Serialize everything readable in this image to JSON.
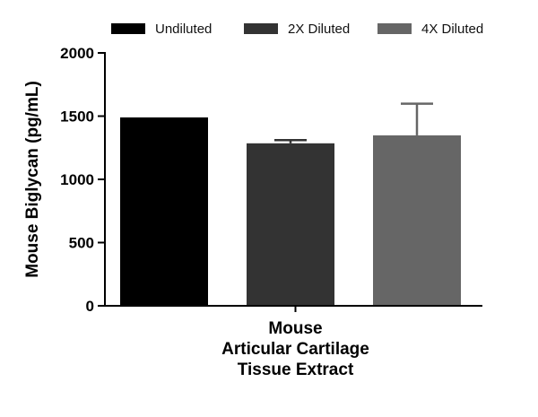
{
  "chart_data": {
    "type": "bar",
    "ylabel": "Mouse Biglycan (pg/mL)",
    "xlabel_lines": [
      "Mouse",
      "Articular Cartilage",
      "Tissue Extract"
    ],
    "ylim": [
      0,
      2000
    ],
    "yticks": [
      0,
      500,
      1000,
      1500,
      2000
    ],
    "legend_position": "top",
    "series": [
      {
        "name": "Undiluted",
        "value": 1490,
        "error": 0,
        "color": "#000000"
      },
      {
        "name": "2X Diluted",
        "value": 1285,
        "error": 25,
        "color": "#333333"
      },
      {
        "name": "4X Diluted",
        "value": 1348,
        "error": 250,
        "color": "#666666"
      }
    ]
  }
}
